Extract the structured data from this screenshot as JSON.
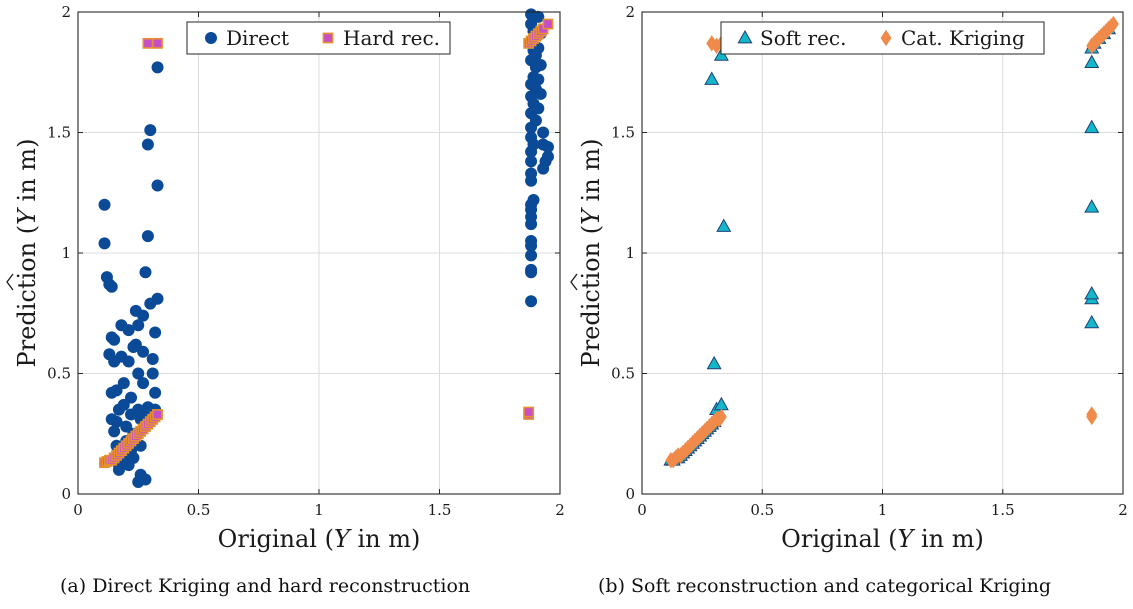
{
  "chart_data": [
    {
      "type": "scatter",
      "caption": "(a) Direct Kriging and hard reconstruction",
      "xlabel_pre": "Original (",
      "xlabel_var": "Y",
      "xlabel_post": " in m)",
      "ylabel_pre": "Prediction (",
      "ylabel_var": "Y",
      "ylabel_post": " in m)",
      "xlim": [
        0,
        2
      ],
      "ylim": [
        0,
        2
      ],
      "xticks": [
        "0",
        "0.5",
        "1",
        "1.5",
        "2"
      ],
      "yticks": [
        "0",
        "0.5",
        "1",
        "1.5",
        "2"
      ],
      "grid": true,
      "legend_position": "top",
      "series": [
        {
          "name": "Direct",
          "marker": "circle",
          "color": "#0a4a96",
          "points": [
            [
              0.11,
              1.2
            ],
            [
              0.11,
              1.04
            ],
            [
              0.12,
              0.9
            ],
            [
              0.13,
              0.87
            ],
            [
              0.14,
              0.86
            ],
            [
              0.14,
              0.65
            ],
            [
              0.13,
              0.58
            ],
            [
              0.15,
              0.55
            ],
            [
              0.16,
              0.43
            ],
            [
              0.14,
              0.42
            ],
            [
              0.14,
              0.31
            ],
            [
              0.16,
              0.3
            ],
            [
              0.15,
              0.26
            ],
            [
              0.16,
              0.2
            ],
            [
              0.17,
              0.12
            ],
            [
              0.17,
              0.1
            ],
            [
              0.18,
              0.7
            ],
            [
              0.18,
              0.57
            ],
            [
              0.19,
              0.46
            ],
            [
              0.19,
              0.37
            ],
            [
              0.2,
              0.28
            ],
            [
              0.2,
              0.22
            ],
            [
              0.21,
              0.68
            ],
            [
              0.21,
              0.55
            ],
            [
              0.22,
              0.4
            ],
            [
              0.22,
              0.33
            ],
            [
              0.23,
              0.25
            ],
            [
              0.23,
              0.15
            ],
            [
              0.24,
              0.76
            ],
            [
              0.24,
              0.62
            ],
            [
              0.25,
              0.7
            ],
            [
              0.25,
              0.5
            ],
            [
              0.25,
              0.35
            ],
            [
              0.26,
              0.31
            ],
            [
              0.25,
              0.05
            ],
            [
              0.26,
              0.08
            ],
            [
              0.27,
              0.74
            ],
            [
              0.27,
              0.59
            ],
            [
              0.27,
              0.46
            ],
            [
              0.28,
              0.33
            ],
            [
              0.28,
              0.06
            ],
            [
              0.28,
              0.92
            ],
            [
              0.29,
              1.07
            ],
            [
              0.29,
              1.45
            ],
            [
              0.3,
              1.51
            ],
            [
              0.3,
              0.79
            ],
            [
              0.31,
              0.56
            ],
            [
              0.31,
              0.5
            ],
            [
              0.32,
              0.67
            ],
            [
              0.32,
              0.42
            ],
            [
              0.33,
              1.77
            ],
            [
              0.33,
              1.28
            ],
            [
              0.33,
              0.81
            ],
            [
              0.32,
              0.35
            ],
            [
              0.24,
              0.25
            ],
            [
              0.22,
              0.18
            ],
            [
              0.19,
              0.14
            ],
            [
              0.26,
              0.2
            ],
            [
              0.3,
              0.3
            ],
            [
              0.17,
              0.35
            ],
            [
              0.23,
              0.61
            ],
            [
              0.15,
              0.64
            ],
            [
              0.29,
              0.36
            ],
            [
              0.21,
              0.12
            ],
            [
              1.88,
              1.99
            ],
            [
              1.88,
              1.95
            ],
            [
              1.89,
              1.92
            ],
            [
              1.88,
              1.88
            ],
            [
              1.89,
              1.84
            ],
            [
              1.88,
              1.8
            ],
            [
              1.9,
              1.77
            ],
            [
              1.89,
              1.73
            ],
            [
              1.88,
              1.7
            ],
            [
              1.9,
              1.68
            ],
            [
              1.88,
              1.65
            ],
            [
              1.89,
              1.62
            ],
            [
              1.88,
              1.58
            ],
            [
              1.9,
              1.55
            ],
            [
              1.88,
              1.52
            ],
            [
              1.88,
              1.48
            ],
            [
              1.89,
              1.45
            ],
            [
              1.88,
              1.42
            ],
            [
              1.88,
              1.38
            ],
            [
              1.88,
              1.33
            ],
            [
              1.88,
              1.3
            ],
            [
              1.89,
              1.22
            ],
            [
              1.88,
              1.2
            ],
            [
              1.88,
              1.18
            ],
            [
              1.88,
              1.15
            ],
            [
              1.88,
              1.12
            ],
            [
              1.88,
              1.05
            ],
            [
              1.88,
              1.03
            ],
            [
              1.88,
              0.99
            ],
            [
              1.88,
              0.93
            ],
            [
              1.88,
              0.92
            ],
            [
              1.88,
              0.8
            ],
            [
              1.91,
              1.98
            ],
            [
              1.92,
              1.91
            ],
            [
              1.91,
              1.85
            ],
            [
              1.92,
              1.78
            ],
            [
              1.91,
              1.72
            ],
            [
              1.92,
              1.66
            ],
            [
              1.93,
              1.5
            ],
            [
              1.93,
              1.45
            ],
            [
              1.94,
              1.38
            ],
            [
              1.93,
              1.35
            ],
            [
              1.95,
              1.44
            ],
            [
              1.95,
              1.4
            ],
            [
              1.9,
              1.82
            ],
            [
              1.91,
              1.6
            ]
          ]
        },
        {
          "name": "Hard rec.",
          "marker": "square",
          "color": "#c64fc8",
          "edge": "#e8902e",
          "points": [
            [
              0.11,
              0.13
            ],
            [
              0.12,
              0.135
            ],
            [
              0.13,
              0.14
            ],
            [
              0.14,
              0.14
            ],
            [
              0.15,
              0.15
            ],
            [
              0.16,
              0.16
            ],
            [
              0.17,
              0.17
            ],
            [
              0.18,
              0.18
            ],
            [
              0.19,
              0.19
            ],
            [
              0.2,
              0.2
            ],
            [
              0.21,
              0.21
            ],
            [
              0.22,
              0.22
            ],
            [
              0.23,
              0.23
            ],
            [
              0.24,
              0.24
            ],
            [
              0.25,
              0.25
            ],
            [
              0.26,
              0.26
            ],
            [
              0.27,
              0.27
            ],
            [
              0.28,
              0.28
            ],
            [
              0.29,
              0.29
            ],
            [
              0.3,
              0.3
            ],
            [
              0.31,
              0.31
            ],
            [
              0.32,
              0.32
            ],
            [
              0.33,
              0.33
            ],
            [
              0.29,
              1.87
            ],
            [
              0.33,
              1.87
            ],
            [
              1.87,
              0.33
            ],
            [
              1.87,
              0.34
            ],
            [
              1.87,
              1.87
            ],
            [
              1.88,
              1.88
            ],
            [
              1.89,
              1.89
            ],
            [
              1.9,
              1.9
            ],
            [
              1.91,
              1.91
            ],
            [
              1.92,
              1.92
            ],
            [
              1.93,
              1.93
            ],
            [
              1.95,
              1.95
            ]
          ]
        }
      ]
    },
    {
      "type": "scatter",
      "caption": "(b) Soft reconstruction and categorical Kriging",
      "xlabel_pre": "Original (",
      "xlabel_var": "Y",
      "xlabel_post": " in m)",
      "ylabel_pre": "Prediction (",
      "ylabel_var": "Y",
      "ylabel_post": " in m)",
      "xlim": [
        0,
        2
      ],
      "ylim": [
        0,
        2
      ],
      "xticks": [
        "0",
        "0.5",
        "1",
        "1.5",
        "2"
      ],
      "yticks": [
        "0",
        "0.5",
        "1",
        "1.5",
        "2"
      ],
      "grid": true,
      "legend_position": "top",
      "series": [
        {
          "name": "Soft rec.",
          "marker": "triangle",
          "color": "#12b8c8",
          "edge": "#1f3f7a",
          "points": [
            [
              0.12,
              0.14
            ],
            [
              0.13,
              0.14
            ],
            [
              0.14,
              0.15
            ],
            [
              0.15,
              0.15
            ],
            [
              0.16,
              0.16
            ],
            [
              0.17,
              0.17
            ],
            [
              0.18,
              0.18
            ],
            [
              0.19,
              0.19
            ],
            [
              0.2,
              0.2
            ],
            [
              0.21,
              0.21
            ],
            [
              0.22,
              0.22
            ],
            [
              0.23,
              0.23
            ],
            [
              0.24,
              0.24
            ],
            [
              0.25,
              0.25
            ],
            [
              0.26,
              0.26
            ],
            [
              0.27,
              0.27
            ],
            [
              0.28,
              0.28
            ],
            [
              0.29,
              0.29
            ],
            [
              0.3,
              0.3
            ],
            [
              0.31,
              0.35
            ],
            [
              0.33,
              0.37
            ],
            [
              0.3,
              0.54
            ],
            [
              0.34,
              1.11
            ],
            [
              0.29,
              1.72
            ],
            [
              0.33,
              1.82
            ],
            [
              1.87,
              0.71
            ],
            [
              1.87,
              0.81
            ],
            [
              1.87,
              0.83
            ],
            [
              1.87,
              1.19
            ],
            [
              1.87,
              1.52
            ],
            [
              1.87,
              1.79
            ],
            [
              1.87,
              1.85
            ],
            [
              1.88,
              1.87
            ],
            [
              1.9,
              1.89
            ],
            [
              1.92,
              1.91
            ],
            [
              1.94,
              1.93
            ]
          ]
        },
        {
          "name": "Cat. Kriging",
          "marker": "diamond",
          "color": "#f08a4b",
          "points": [
            [
              0.12,
              0.14
            ],
            [
              0.13,
              0.14
            ],
            [
              0.14,
              0.15
            ],
            [
              0.15,
              0.16
            ],
            [
              0.16,
              0.16
            ],
            [
              0.17,
              0.17
            ],
            [
              0.18,
              0.18
            ],
            [
              0.19,
              0.19
            ],
            [
              0.2,
              0.2
            ],
            [
              0.21,
              0.21
            ],
            [
              0.22,
              0.22
            ],
            [
              0.23,
              0.23
            ],
            [
              0.24,
              0.24
            ],
            [
              0.25,
              0.25
            ],
            [
              0.26,
              0.26
            ],
            [
              0.27,
              0.27
            ],
            [
              0.28,
              0.28
            ],
            [
              0.29,
              0.29
            ],
            [
              0.3,
              0.3
            ],
            [
              0.31,
              0.31
            ],
            [
              0.32,
              0.31
            ],
            [
              0.33,
              0.32
            ],
            [
              0.29,
              1.87
            ],
            [
              0.31,
              1.86
            ],
            [
              0.33,
              1.87
            ],
            [
              1.87,
              0.32
            ],
            [
              1.87,
              0.33
            ],
            [
              1.87,
              1.86
            ],
            [
              1.88,
              1.87
            ],
            [
              1.89,
              1.88
            ],
            [
              1.9,
              1.89
            ],
            [
              1.91,
              1.9
            ],
            [
              1.92,
              1.91
            ],
            [
              1.93,
              1.92
            ],
            [
              1.94,
              1.93
            ],
            [
              1.95,
              1.94
            ],
            [
              1.96,
              1.95
            ]
          ]
        }
      ]
    }
  ]
}
